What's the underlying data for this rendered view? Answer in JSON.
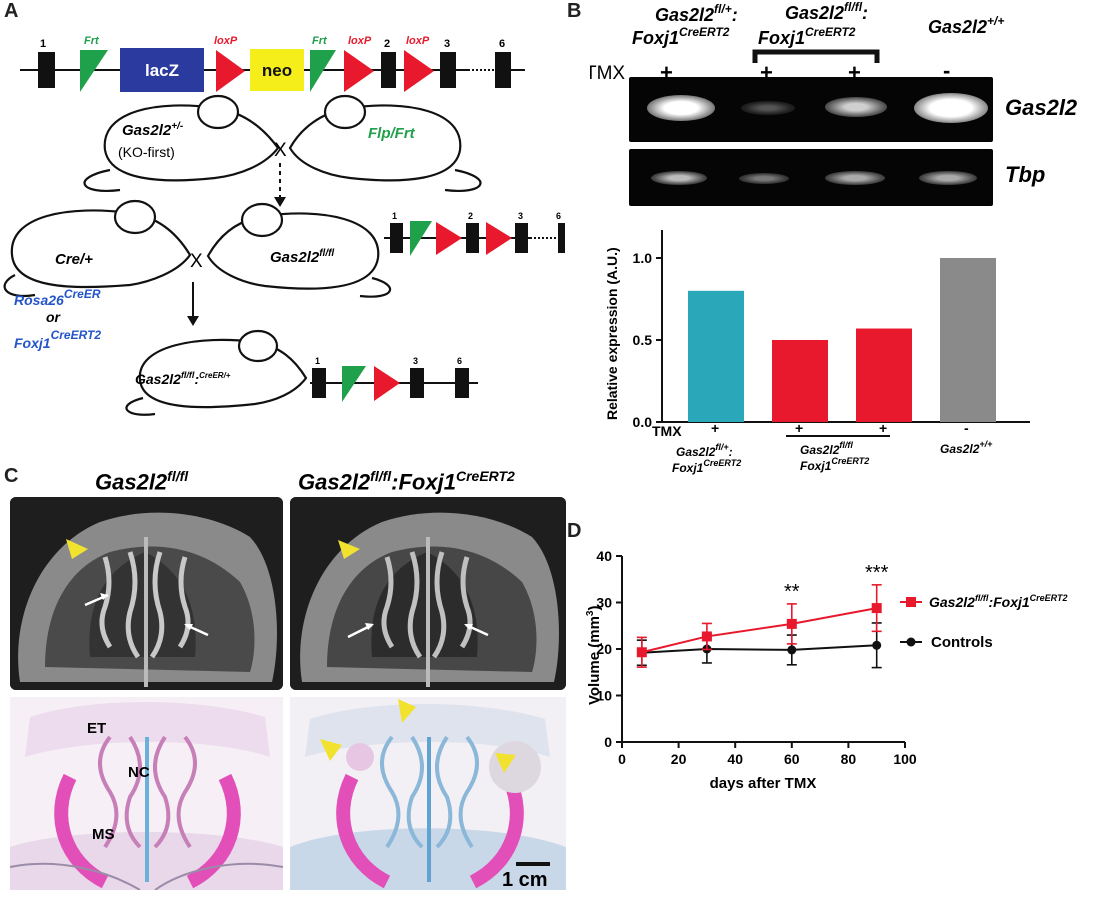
{
  "panels": {
    "a": "A",
    "b": "B",
    "c": "C",
    "d": "D"
  },
  "panel_a": {
    "exons": {
      "e1": "1",
      "e2": "2",
      "e3": "3",
      "e6": "6"
    },
    "frt": "Frt",
    "loxp": "loxP",
    "lacz": "lacZ",
    "neo": "neo",
    "mouse1": {
      "name": "Gas2l2",
      "sup": "+/-",
      "sub": "(KO-first)"
    },
    "cross": "X",
    "mouse2": "Flp/Frt",
    "mouse3": "Cre/+",
    "mouse4": {
      "name": "Gas2l2",
      "sup": "fl/fl"
    },
    "rosa": {
      "name": "Rosa26",
      "sup": "CreER"
    },
    "or": "or",
    "foxj1": {
      "name": "Foxj1",
      "sup": "CreERT2"
    },
    "mouse5": {
      "name": "Gas2l2",
      "sup1": "fl/fl",
      "colon": ":",
      "sup2": "CreER/+"
    }
  },
  "panel_b": {
    "header": {
      "g1_line1": "Gas2l2",
      "g1_sup1": "fl/+",
      "g1_colon": ":",
      "g1_line2": "Foxj1",
      "g1_sup2": "CreERT2",
      "g2_line1": "Gas2l2",
      "g2_sup1": "fl/fl",
      "g2_colon": ":",
      "g2_line2": "Foxj1",
      "g2_sup2": "CreERT2",
      "g3_name": "Gas2l2",
      "g3_sup": "+/+"
    },
    "tmx_label": "TMX",
    "tmx_signs": [
      "+",
      "+",
      "+",
      "-"
    ],
    "gel_labels": {
      "top": "Gas2l2",
      "bottom": "Tbp"
    }
  },
  "chart_data": [
    {
      "type": "bar",
      "ylabel": "Relative expression (A.U.)",
      "ylim": [
        0,
        1.0
      ],
      "yticks": [
        "0.0",
        "0.5",
        "1.0"
      ],
      "categories": [
        "Gas2l2 fl/+ : Foxj1 CreERT2 (+TMX)",
        "Gas2l2 fl/fl Foxj1 CreERT2 (+TMX) a",
        "Gas2l2 fl/fl Foxj1 CreERT2 (+TMX) b",
        "Gas2l2 +/+ (-TMX)"
      ],
      "values": [
        0.8,
        0.5,
        0.57,
        1.0
      ],
      "colors": [
        "#2aa7b8",
        "#e8192c",
        "#e8192c",
        "#8a8a8a"
      ],
      "tmx_label": "TMX",
      "tmx_signs": [
        "+",
        "+",
        "+",
        "-"
      ],
      "group_labels": {
        "g1_l1": "Gas2l2",
        "g1_s1": "fl/+",
        "g1_colon": ":",
        "g1_l2": "Foxj1",
        "g1_s2": "CreERT2",
        "g2_l1": "Gas2l2",
        "g2_s1": "fl/fl",
        "g2_l2": "Foxj1",
        "g2_s2": "CreERT2",
        "g3_l1": "Gas2l2",
        "g3_s1": "+/+"
      }
    },
    {
      "type": "line",
      "xlabel": "days after TMX",
      "ylabel": "Volume (mm",
      "ylabel_sup": "3",
      "ylabel_end": ")",
      "xlim": [
        0,
        100
      ],
      "ylim": [
        0,
        40
      ],
      "xticks": [
        "0",
        "20",
        "40",
        "60",
        "80",
        "100"
      ],
      "yticks": [
        "0",
        "10",
        "20",
        "30",
        "40"
      ],
      "x": [
        7,
        30,
        60,
        90
      ],
      "series": [
        {
          "name": "Gas2l2 fl/fl :Foxj1 CreERT2",
          "color": "#e8192c",
          "values": [
            19.3,
            22.7,
            25.4,
            28.8
          ],
          "err": [
            3.2,
            2.8,
            4.3,
            5.0
          ]
        },
        {
          "name": "Controls",
          "color": "#111111",
          "values": [
            19.2,
            20.0,
            19.8,
            20.8
          ],
          "err": [
            2.7,
            3.0,
            3.2,
            4.8
          ]
        }
      ],
      "legend": {
        "s1_name": "Gas2l2",
        "s1_sup1": "fl/fl",
        "s1_mid": ":Foxj1",
        "s1_sup2": "CreERT2",
        "s2_name": "Controls"
      },
      "annotations": [
        {
          "x": 60,
          "text": "**"
        },
        {
          "x": 90,
          "text": "***"
        }
      ]
    }
  ],
  "panel_c": {
    "title_left": {
      "name": "Gas2l2",
      "sup": "fl/fl"
    },
    "title_right": {
      "name": "Gas2l2",
      "sup1": "fl/fl",
      "mid": ":Foxj1",
      "sup2": "CreERT2"
    },
    "labels": {
      "et": "ET",
      "nc": "NC",
      "ms": "MS"
    },
    "scale_bar": "1 cm"
  }
}
